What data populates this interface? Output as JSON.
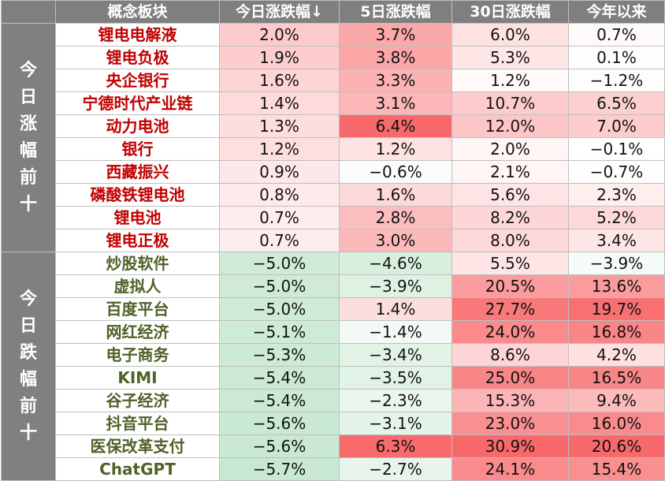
{
  "header": {
    "name": "概念板块",
    "today": "今日涨跌幅↓",
    "d5": "5日涨跌幅",
    "d30": "30日涨跌幅",
    "ytd": "今年以来"
  },
  "groups": [
    {
      "label": [
        "今",
        "日",
        "涨",
        "幅",
        "前",
        "十"
      ],
      "kind": "up",
      "rows": [
        {
          "name": "锂电电解液",
          "today": "2.0%",
          "d5": "3.7%",
          "d30": "6.0%",
          "ytd": "0.7%"
        },
        {
          "name": "锂电负极",
          "today": "1.9%",
          "d5": "3.8%",
          "d30": "5.3%",
          "ytd": "0.1%"
        },
        {
          "name": "央企银行",
          "today": "1.6%",
          "d5": "3.3%",
          "d30": "1.2%",
          "ytd": "−1.2%"
        },
        {
          "name": "宁德时代产业链",
          "today": "1.4%",
          "d5": "3.1%",
          "d30": "10.7%",
          "ytd": "6.5%"
        },
        {
          "name": "动力电池",
          "today": "1.3%",
          "d5": "6.4%",
          "d30": "12.0%",
          "ytd": "7.0%"
        },
        {
          "name": "银行",
          "today": "1.2%",
          "d5": "1.2%",
          "d30": "2.0%",
          "ytd": "−0.1%"
        },
        {
          "name": "西藏振兴",
          "today": "0.9%",
          "d5": "−0.6%",
          "d30": "2.1%",
          "ytd": "−0.7%"
        },
        {
          "name": "磷酸铁锂电池",
          "today": "0.8%",
          "d5": "1.6%",
          "d30": "5.6%",
          "ytd": "2.3%"
        },
        {
          "name": "锂电池",
          "today": "0.7%",
          "d5": "2.8%",
          "d30": "8.2%",
          "ytd": "5.2%"
        },
        {
          "name": "锂电正极",
          "today": "0.7%",
          "d5": "3.0%",
          "d30": "8.0%",
          "ytd": "3.4%"
        }
      ]
    },
    {
      "label": [
        "今",
        "日",
        "跌",
        "幅",
        "前",
        "十"
      ],
      "kind": "down",
      "rows": [
        {
          "name": "炒股软件",
          "today": "−5.0%",
          "d5": "−4.6%",
          "d30": "5.5%",
          "ytd": "−3.9%"
        },
        {
          "name": "虚拟人",
          "today": "−5.0%",
          "d5": "−3.9%",
          "d30": "20.5%",
          "ytd": "13.6%"
        },
        {
          "name": "百度平台",
          "today": "−5.0%",
          "d5": "1.4%",
          "d30": "27.7%",
          "ytd": "19.7%"
        },
        {
          "name": "网红经济",
          "today": "−5.1%",
          "d5": "−1.4%",
          "d30": "24.0%",
          "ytd": "16.8%"
        },
        {
          "name": "电子商务",
          "today": "−5.3%",
          "d5": "−3.4%",
          "d30": "8.6%",
          "ytd": "4.2%"
        },
        {
          "name": "KIMI",
          "today": "−5.4%",
          "d5": "−3.5%",
          "d30": "25.0%",
          "ytd": "16.5%"
        },
        {
          "name": "谷子经济",
          "today": "−5.4%",
          "d5": "−2.3%",
          "d30": "15.3%",
          "ytd": "9.4%"
        },
        {
          "name": "抖音平台",
          "today": "−5.6%",
          "d5": "−3.1%",
          "d30": "23.0%",
          "ytd": "16.0%"
        },
        {
          "name": "医保改革支付",
          "today": "−5.6%",
          "d5": "6.3%",
          "d30": "30.9%",
          "ytd": "20.6%"
        },
        {
          "name": "ChatGPT",
          "today": "−5.7%",
          "d5": "−2.7%",
          "d30": "24.1%",
          "ytd": "15.4%"
        }
      ]
    }
  ]
}
